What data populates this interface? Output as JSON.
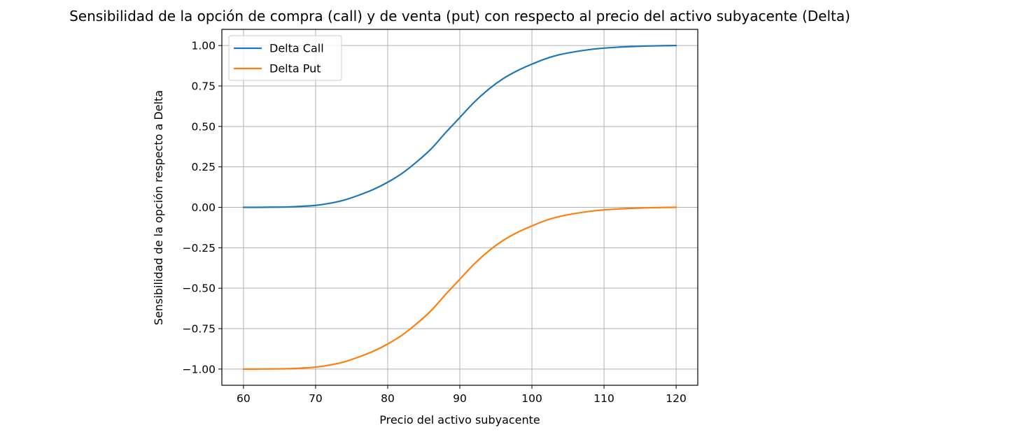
{
  "chart_data": {
    "type": "line",
    "title": "Sensibilidad de la opción de compra (call) y de venta (put) con respecto al precio del activo subyacente (Delta)",
    "xlabel": "Precio del activo subyacente",
    "ylabel": "Sensibilidad de la opción respecto a Delta",
    "xlim": [
      57,
      123
    ],
    "ylim": [
      -1.1,
      1.1
    ],
    "x_ticks": [
      60,
      70,
      80,
      90,
      100,
      110,
      120
    ],
    "y_ticks": [
      1.0,
      0.75,
      0.5,
      0.25,
      0.0,
      -0.25,
      -0.5,
      -0.75,
      -1.0
    ],
    "x_tick_labels": [
      "60",
      "70",
      "80",
      "90",
      "100",
      "110",
      "120"
    ],
    "y_tick_labels": [
      "1.00",
      "0.75",
      "0.50",
      "0.25",
      "0.00",
      "−0.25",
      "−0.50",
      "−0.75",
      "−1.00"
    ],
    "grid": true,
    "legend_position": "top-left",
    "x": [
      60,
      62,
      64,
      66,
      68,
      70,
      72,
      74,
      76,
      78,
      80,
      82,
      84,
      86,
      88,
      90,
      92,
      94,
      96,
      98,
      100,
      102,
      104,
      106,
      108,
      110,
      112,
      114,
      116,
      118,
      120
    ],
    "series": [
      {
        "name": "Delta Call",
        "color": "#1f77b4",
        "values": [
          0.0,
          0.0,
          0.001,
          0.002,
          0.006,
          0.012,
          0.025,
          0.045,
          0.075,
          0.11,
          0.155,
          0.21,
          0.28,
          0.36,
          0.46,
          0.555,
          0.65,
          0.73,
          0.795,
          0.845,
          0.885,
          0.92,
          0.945,
          0.962,
          0.975,
          0.984,
          0.99,
          0.994,
          0.997,
          0.999,
          1.0
        ]
      },
      {
        "name": "Delta Put",
        "color": "#ff7f0e",
        "values": [
          -1.0,
          -1.0,
          -0.999,
          -0.998,
          -0.994,
          -0.988,
          -0.975,
          -0.955,
          -0.925,
          -0.89,
          -0.845,
          -0.79,
          -0.72,
          -0.64,
          -0.54,
          -0.445,
          -0.35,
          -0.27,
          -0.205,
          -0.155,
          -0.115,
          -0.08,
          -0.055,
          -0.038,
          -0.025,
          -0.016,
          -0.01,
          -0.006,
          -0.003,
          -0.001,
          0.0
        ]
      }
    ]
  }
}
